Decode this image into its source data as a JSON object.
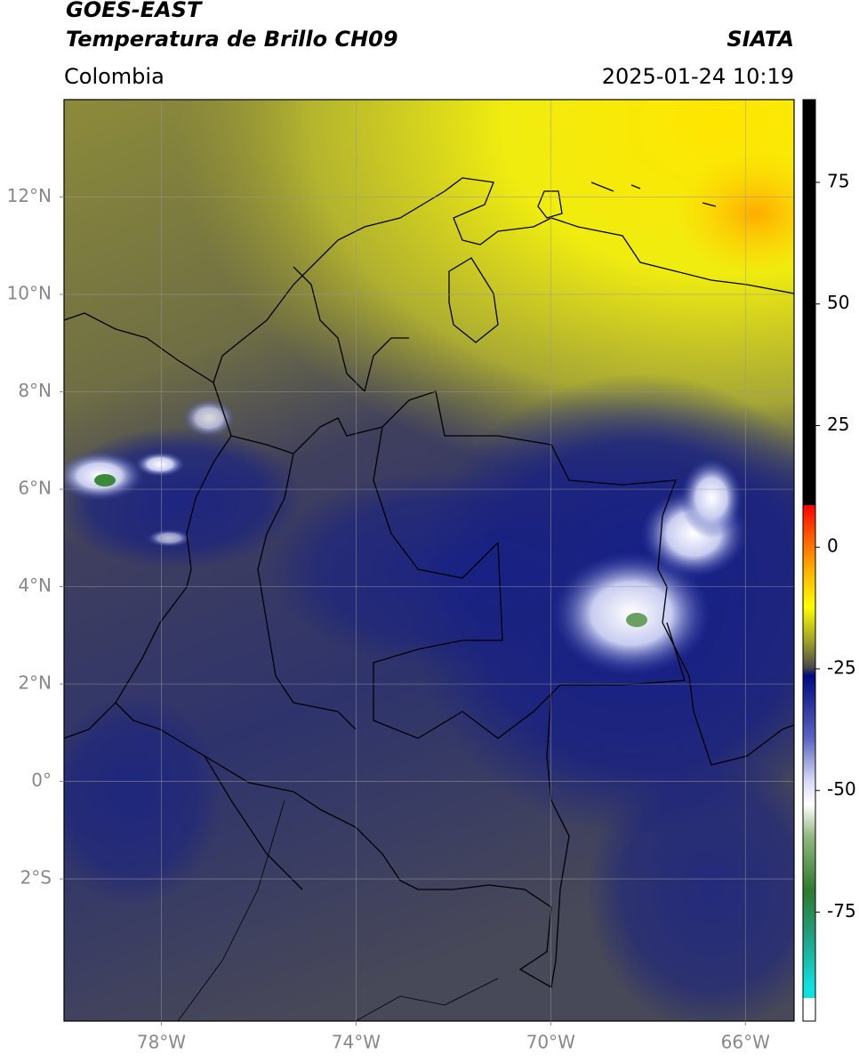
{
  "header": {
    "satellite": "GOES-EAST",
    "product": "Temperatura de Brillo CH09",
    "source": "SIATA",
    "region": "Colombia",
    "datetime": "2025-01-24 10:19"
  },
  "map": {
    "xlim": [
      -80,
      -65
    ],
    "ylim": [
      -4.92,
      14
    ],
    "xticks": [
      {
        "value": -78,
        "label": "78°W"
      },
      {
        "value": -74,
        "label": "74°W"
      },
      {
        "value": -70,
        "label": "70°W"
      },
      {
        "value": -66,
        "label": "66°W"
      }
    ],
    "yticks": [
      {
        "value": 12,
        "label": "12°N"
      },
      {
        "value": 10,
        "label": "10°N"
      },
      {
        "value": 8,
        "label": "8°N"
      },
      {
        "value": 6,
        "label": "6°N"
      },
      {
        "value": 4,
        "label": "4°N"
      },
      {
        "value": 2,
        "label": "2°N"
      },
      {
        "value": 0,
        "label": "0°"
      },
      {
        "value": -2,
        "label": "2°S"
      }
    ],
    "grid": true
  },
  "colorbar": {
    "lim": [
      -97.4,
      92
    ],
    "ticks": [
      75,
      50,
      25,
      0,
      -25,
      -50,
      -75
    ]
  }
}
